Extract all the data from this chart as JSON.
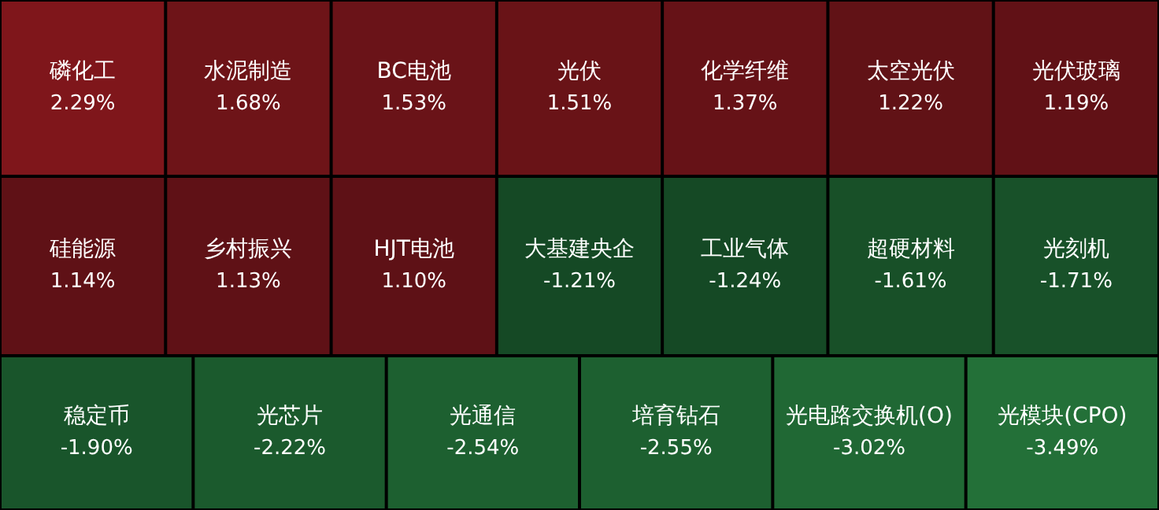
{
  "chart_data": {
    "type": "other",
    "categories": [
      "磷化工",
      "水泥制造",
      "BC电池",
      "光伏",
      "化学纤维",
      "太空光伏",
      "光伏玻璃",
      "硅能源",
      "乡村振兴",
      "HJT电池",
      "大基建央企",
      "工业气体",
      "超硬材料",
      "光刻机",
      "稳定币",
      "光芯片",
      "光通信",
      "培育钻石",
      "光电路交换机(O)",
      "光模块(CPO)"
    ],
    "values": [
      2.29,
      1.68,
      1.53,
      1.51,
      1.37,
      1.22,
      1.19,
      1.14,
      1.13,
      1.1,
      -1.21,
      -1.24,
      -1.61,
      -1.71,
      -1.9,
      -2.22,
      -2.54,
      -2.55,
      -3.02,
      -3.49
    ],
    "value_labels": [
      "2.29%",
      "1.68%",
      "1.53%",
      "1.51%",
      "1.37%",
      "1.22%",
      "1.19%",
      "1.14%",
      "1.13%",
      "1.10%",
      "-1.21%",
      "-1.24%",
      "-1.61%",
      "-1.71%",
      "-1.90%",
      "-2.22%",
      "-2.54%",
      "-2.55%",
      "-3.02%",
      "-3.49%"
    ]
  }
}
